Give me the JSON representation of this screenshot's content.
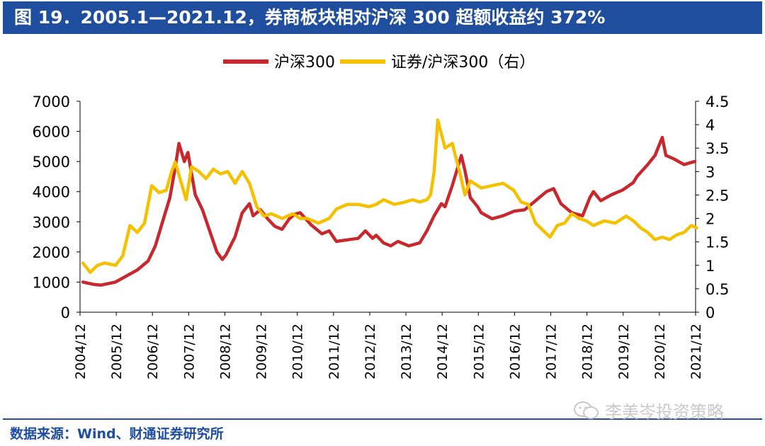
{
  "header": {
    "title": "图 19．2005.1—2021.12，券商板块相对沪深 300 超额收益约 372%"
  },
  "footer": {
    "source": "数据来源：Wind、财通证券研究所",
    "watermark": "李美岑投资策略"
  },
  "colors": {
    "title_bg": "#1f4e9e",
    "series_csi300": "#c8282d",
    "series_ratio": "#f5c000",
    "axis": "#000000"
  },
  "chart_data": {
    "type": "line",
    "title": "2005.1—2021.12，券商板块相对沪深 300 超额收益约 372%",
    "xlabel": "",
    "ylabel": "",
    "x_ticks": [
      "2004/12",
      "2005/12",
      "2006/12",
      "2007/12",
      "2008/12",
      "2009/12",
      "2010/12",
      "2011/12",
      "2012/12",
      "2013/12",
      "2014/12",
      "2015/12",
      "2016/12",
      "2017/12",
      "2018/12",
      "2019/12",
      "2020/12",
      "2021/12"
    ],
    "y_left": {
      "lim": [
        0,
        7000
      ],
      "ticks": [
        0,
        1000,
        2000,
        3000,
        4000,
        5000,
        6000,
        7000
      ],
      "tick_labels": [
        "0",
        "1000",
        "2000",
        "3000",
        "4000",
        "5000",
        "6000",
        "7000"
      ]
    },
    "y_right": {
      "lim": [
        0,
        4.5
      ],
      "ticks": [
        0,
        0.5,
        1,
        1.5,
        2,
        2.5,
        3,
        3.5,
        4,
        4.5
      ],
      "tick_labels": [
        "0",
        "0.5",
        "1",
        "1.5",
        "2",
        "2.5",
        "3",
        "3.5",
        "4",
        "4.5"
      ]
    },
    "legend_position": "top-center",
    "series": [
      {
        "name": "沪深300",
        "axis": "left",
        "color": "#c8282d",
        "x": [
          2005.0,
          2005.3,
          2005.5,
          2005.7,
          2005.9,
          2006.2,
          2006.5,
          2006.8,
          2007.0,
          2007.2,
          2007.4,
          2007.55,
          2007.65,
          2007.8,
          2007.9,
          2008.1,
          2008.3,
          2008.5,
          2008.7,
          2008.85,
          2008.95,
          2009.2,
          2009.4,
          2009.6,
          2009.7,
          2009.9,
          2010.1,
          2010.3,
          2010.5,
          2010.7,
          2010.85,
          2011.0,
          2011.3,
          2011.6,
          2011.8,
          2012.0,
          2012.3,
          2012.6,
          2012.8,
          2013.0,
          2013.1,
          2013.3,
          2013.5,
          2013.7,
          2014.0,
          2014.3,
          2014.5,
          2014.7,
          2014.9,
          2015.0,
          2015.2,
          2015.45,
          2015.55,
          2015.7,
          2015.9,
          2016.0,
          2016.3,
          2016.6,
          2016.9,
          2017.2,
          2017.5,
          2017.8,
          2018.0,
          2018.2,
          2018.5,
          2018.8,
          2019.0,
          2019.1,
          2019.3,
          2019.6,
          2019.9,
          2020.2,
          2020.3,
          2020.6,
          2020.8,
          2021.0,
          2021.1,
          2021.3,
          2021.6,
          2021.9
        ],
        "values": [
          1000,
          920,
          900,
          950,
          1000,
          1200,
          1400,
          1700,
          2200,
          3000,
          3800,
          4800,
          5600,
          5000,
          5300,
          3900,
          3400,
          2700,
          2000,
          1750,
          1900,
          2500,
          3300,
          3600,
          3200,
          3400,
          3100,
          2850,
          2750,
          3100,
          3250,
          3300,
          2900,
          2600,
          2700,
          2350,
          2400,
          2450,
          2700,
          2450,
          2550,
          2300,
          2200,
          2350,
          2200,
          2300,
          2700,
          3200,
          3600,
          3500,
          4200,
          5200,
          4700,
          3800,
          3500,
          3300,
          3100,
          3200,
          3350,
          3400,
          3700,
          4000,
          4100,
          3600,
          3300,
          3200,
          3800,
          4000,
          3700,
          3900,
          4050,
          4300,
          4500,
          4900,
          5200,
          5800,
          5200,
          5100,
          4900,
          5000
        ]
      },
      {
        "name": "证券/沪深300（右）",
        "axis": "right",
        "color": "#f5c000",
        "x": [
          2005.0,
          2005.2,
          2005.4,
          2005.6,
          2005.9,
          2006.1,
          2006.3,
          2006.5,
          2006.7,
          2006.9,
          2007.1,
          2007.3,
          2007.45,
          2007.55,
          2007.7,
          2007.85,
          2008.0,
          2008.2,
          2008.4,
          2008.6,
          2008.8,
          2009.0,
          2009.2,
          2009.4,
          2009.6,
          2009.8,
          2010.0,
          2010.2,
          2010.5,
          2010.8,
          2011.0,
          2011.2,
          2011.5,
          2011.8,
          2012.0,
          2012.3,
          2012.6,
          2012.9,
          2013.1,
          2013.3,
          2013.6,
          2013.9,
          2014.1,
          2014.3,
          2014.5,
          2014.6,
          2014.7,
          2014.8,
          2014.9,
          2015.0,
          2015.2,
          2015.4,
          2015.55,
          2015.7,
          2016.0,
          2016.3,
          2016.6,
          2016.9,
          2017.1,
          2017.3,
          2017.5,
          2017.7,
          2017.9,
          2018.1,
          2018.3,
          2018.5,
          2018.7,
          2018.9,
          2019.1,
          2019.4,
          2019.7,
          2020.0,
          2020.2,
          2020.4,
          2020.6,
          2020.8,
          2021.0,
          2021.2,
          2021.4,
          2021.6,
          2021.8,
          2021.95
        ],
        "values": [
          1.05,
          0.85,
          1.0,
          1.05,
          1.0,
          1.2,
          1.85,
          1.7,
          1.9,
          2.7,
          2.55,
          2.6,
          3.0,
          3.2,
          2.8,
          2.4,
          3.1,
          3.0,
          2.85,
          3.05,
          2.95,
          3.0,
          2.75,
          3.0,
          2.75,
          2.25,
          2.05,
          2.1,
          2.0,
          2.1,
          2.0,
          2.0,
          1.9,
          2.0,
          2.2,
          2.3,
          2.3,
          2.25,
          2.3,
          2.4,
          2.3,
          2.35,
          2.4,
          2.35,
          2.4,
          2.5,
          3.0,
          4.1,
          3.8,
          3.5,
          3.6,
          3.0,
          2.5,
          2.8,
          2.65,
          2.7,
          2.75,
          2.6,
          2.35,
          2.3,
          1.9,
          1.75,
          1.6,
          1.85,
          1.9,
          2.1,
          2.0,
          1.95,
          1.85,
          1.95,
          1.9,
          2.05,
          1.95,
          1.8,
          1.7,
          1.55,
          1.6,
          1.55,
          1.65,
          1.7,
          1.85,
          1.8
        ]
      }
    ]
  }
}
